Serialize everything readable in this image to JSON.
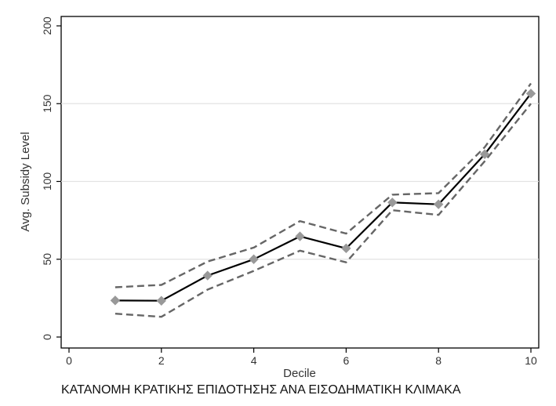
{
  "caption": "ΚΑΤΑΝΟΜΗ ΚΡΑΤΙΚΗΣ ΕΠΙΔΟΤΗΣΗΣ ΑΝΑ ΕΙΣΟΔΗΜΑΤΙΚΗ ΚΛΙΜΑΚΑ",
  "chart_data": {
    "type": "line",
    "title": "",
    "xlabel": "Decile",
    "ylabel": "Avg. Subsidy Level",
    "xlim": [
      0,
      10
    ],
    "ylim": [
      0,
      200
    ],
    "x_ticks": [
      0,
      2,
      4,
      6,
      8,
      10
    ],
    "y_ticks": [
      0,
      50,
      100,
      150,
      200
    ],
    "grid": "horizontal",
    "legend": "none",
    "x": [
      1,
      2,
      3,
      4,
      5,
      6,
      7,
      8,
      9,
      10
    ],
    "series": [
      {
        "role": "estimate",
        "values": [
          23.5,
          23.3,
          39.5,
          50,
          64.7,
          57,
          86.5,
          85.3,
          117.5,
          156.5
        ],
        "color": "#000000",
        "marker": "diamond",
        "marker_color": "#999999"
      },
      {
        "role": "upper-ci",
        "values": [
          32,
          33.5,
          48.5,
          57.5,
          74.5,
          66.5,
          91.5,
          92.5,
          122,
          163
        ],
        "color": "#666666",
        "style": "dashed"
      },
      {
        "role": "lower-ci",
        "values": [
          15,
          13,
          30.5,
          42.5,
          55.5,
          48,
          81.5,
          78.5,
          113,
          150
        ],
        "color": "#666666",
        "style": "dashed"
      }
    ]
  }
}
